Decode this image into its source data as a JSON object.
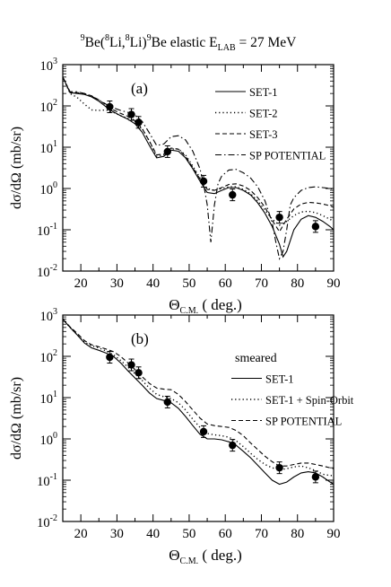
{
  "title": {
    "sup1": "9",
    "t1": "Be(",
    "sup2": "8",
    "t2": "Li,",
    "sup3": "8",
    "t3": "Li)",
    "sup4": "9",
    "t4": "Be elastic E",
    "sub": "LAB",
    "t5": " = 27 MeV"
  },
  "chart_data": [
    {
      "type": "line",
      "panel_label": "(a)",
      "xlabel": "Θ",
      "xlabel_sub": "C.M.",
      "xlabel_rest": " ( deg.)",
      "ylabel": "dσ/dΩ (mb/sr)",
      "xlim": [
        15,
        90
      ],
      "ylim": [
        0.01,
        1000
      ],
      "yscale": "log",
      "xticks": [
        20,
        30,
        40,
        50,
        60,
        70,
        80,
        90
      ],
      "yticks": [
        {
          "value": 1000,
          "base": "10",
          "exp": "3"
        },
        {
          "value": 100,
          "base": "10",
          "exp": "2"
        },
        {
          "value": 10,
          "base": "10",
          "exp": "1"
        },
        {
          "value": 1,
          "base": "10",
          "exp": "0"
        },
        {
          "value": 0.1,
          "base": "10",
          "exp": "-1"
        },
        {
          "value": 0.01,
          "base": "10",
          "exp": "-2"
        }
      ],
      "legend_position": "top-right",
      "experimental": {
        "x": [
          28,
          34,
          36,
          44,
          54,
          62,
          75,
          85
        ],
        "y": [
          95,
          62,
          40,
          7.8,
          1.5,
          0.7,
          0.2,
          0.12
        ]
      },
      "series": [
        {
          "name": "SET-1",
          "style": "solid",
          "x": [
            15,
            17,
            19,
            21,
            23,
            25,
            27,
            29,
            31,
            33,
            35,
            37,
            39,
            41,
            43,
            45,
            47,
            49,
            51,
            53,
            55,
            57,
            59,
            61,
            63,
            65,
            67,
            69,
            71,
            73,
            75,
            76,
            77,
            79,
            81,
            83,
            85,
            87,
            89,
            90
          ],
          "y": [
            500,
            210,
            200,
            190,
            165,
            130,
            95,
            72,
            58,
            48,
            37,
            23,
            11,
            5.5,
            6,
            8.5,
            8,
            5.5,
            3,
            1.5,
            0.8,
            0.75,
            0.9,
            1.05,
            1.05,
            0.9,
            0.7,
            0.45,
            0.25,
            0.12,
            0.045,
            0.022,
            0.03,
            0.1,
            0.18,
            0.22,
            0.2,
            0.16,
            0.12,
            0.1
          ]
        },
        {
          "name": "SET-2",
          "style": "dotted",
          "x": [
            15,
            17,
            19,
            21,
            23,
            25,
            27,
            29,
            31,
            33,
            35,
            37,
            39,
            41,
            43,
            45,
            47,
            49,
            51,
            53,
            55,
            57,
            59,
            61,
            63,
            65,
            67,
            69,
            71,
            73,
            75,
            77,
            79,
            81,
            83,
            85,
            87,
            89,
            90
          ],
          "y": [
            500,
            200,
            160,
            110,
            80,
            78,
            80,
            70,
            58,
            50,
            42,
            28,
            14,
            6,
            6.5,
            9,
            9,
            6.5,
            3.5,
            1.8,
            1.0,
            0.9,
            1.0,
            1.1,
            1.1,
            0.95,
            0.75,
            0.5,
            0.3,
            0.18,
            0.13,
            0.16,
            0.22,
            0.27,
            0.28,
            0.26,
            0.22,
            0.18,
            0.16
          ]
        },
        {
          "name": "SET-3",
          "style": "dashed",
          "x": [
            15,
            17,
            19,
            21,
            23,
            25,
            27,
            29,
            31,
            33,
            35,
            37,
            39,
            41,
            43,
            45,
            47,
            49,
            51,
            53,
            55,
            57,
            59,
            61,
            63,
            65,
            67,
            69,
            71,
            73,
            75,
            77,
            79,
            81,
            83,
            85,
            87,
            89,
            90
          ],
          "y": [
            500,
            215,
            210,
            200,
            175,
            140,
            105,
            80,
            66,
            56,
            44,
            28,
            14,
            6.5,
            6.8,
            9.5,
            9,
            6,
            3.2,
            1.7,
            0.95,
            0.9,
            1.05,
            1.25,
            1.3,
            1.15,
            0.9,
            0.6,
            0.35,
            0.17,
            0.09,
            0.18,
            0.32,
            0.42,
            0.46,
            0.45,
            0.42,
            0.38,
            0.35
          ]
        },
        {
          "name": "SP POTENTIAL",
          "style": "dashdot",
          "x": [
            15,
            17,
            19,
            21,
            23,
            25,
            27,
            29,
            31,
            33,
            35,
            37,
            39,
            41,
            43,
            45,
            47,
            49,
            51,
            53,
            54,
            55,
            56,
            57,
            58,
            59,
            61,
            63,
            65,
            67,
            69,
            71,
            73,
            74,
            75,
            76,
            77,
            78,
            79,
            81,
            83,
            85,
            87,
            89,
            90
          ],
          "y": [
            500,
            220,
            220,
            200,
            170,
            140,
            110,
            90,
            78,
            70,
            60,
            42,
            22,
            11,
            12,
            18,
            19,
            15,
            8,
            3,
            1.3,
            0.4,
            0.05,
            0.4,
            1.3,
            2,
            2.8,
            2.9,
            2.4,
            1.8,
            1.1,
            0.5,
            0.15,
            0.05,
            0.02,
            0.03,
            0.1,
            0.4,
            0.6,
            0.9,
            1.05,
            1.1,
            1.05,
            1.0,
            0.95
          ]
        }
      ]
    },
    {
      "type": "line",
      "panel_label": "(b)",
      "legend_header": "smeared",
      "xlabel": "Θ",
      "xlabel_sub": "C.M.",
      "xlabel_rest": " ( deg.)",
      "ylabel": "dσ/dΩ (mb/sr)",
      "xlim": [
        15,
        90
      ],
      "ylim": [
        0.01,
        1000
      ],
      "yscale": "log",
      "xticks": [
        20,
        30,
        40,
        50,
        60,
        70,
        80,
        90
      ],
      "yticks": [
        {
          "value": 1000,
          "base": "10",
          "exp": "3"
        },
        {
          "value": 100,
          "base": "10",
          "exp": "2"
        },
        {
          "value": 10,
          "base": "10",
          "exp": "1"
        },
        {
          "value": 1,
          "base": "10",
          "exp": "0"
        },
        {
          "value": 0.1,
          "base": "10",
          "exp": "-1"
        },
        {
          "value": 0.01,
          "base": "10",
          "exp": "-2"
        }
      ],
      "legend_position": "top-right",
      "experimental": {
        "x": [
          28,
          34,
          36,
          44,
          54,
          62,
          75,
          85
        ],
        "y": [
          95,
          62,
          40,
          7.8,
          1.5,
          0.7,
          0.2,
          0.12
        ]
      },
      "series": [
        {
          "name": "SET-1",
          "style": "solid",
          "x": [
            15,
            17,
            19,
            21,
            23,
            25,
            27,
            29,
            31,
            33,
            35,
            37,
            39,
            41,
            43,
            45,
            47,
            49,
            51,
            53,
            55,
            57,
            59,
            61,
            63,
            65,
            67,
            69,
            71,
            73,
            75,
            77,
            79,
            81,
            83,
            85,
            87,
            89,
            90
          ],
          "y": [
            800,
            500,
            330,
            210,
            160,
            140,
            120,
            100,
            70,
            45,
            30,
            20,
            13,
            9.5,
            8.5,
            7.5,
            5.5,
            3.5,
            2.1,
            1.3,
            1.0,
            1.0,
            0.95,
            0.85,
            0.7,
            0.5,
            0.35,
            0.23,
            0.15,
            0.1,
            0.08,
            0.09,
            0.12,
            0.15,
            0.16,
            0.15,
            0.12,
            0.09,
            0.08
          ]
        },
        {
          "name": "SET-1 + Spin-Orbit",
          "style": "dotted",
          "x": [
            15,
            17,
            19,
            21,
            23,
            25,
            27,
            29,
            31,
            33,
            35,
            37,
            39,
            41,
            43,
            45,
            47,
            49,
            51,
            53,
            55,
            57,
            59,
            61,
            63,
            65,
            67,
            69,
            71,
            73,
            75,
            77,
            79,
            81,
            83,
            85,
            87,
            89,
            90
          ],
          "y": [
            800,
            500,
            330,
            220,
            180,
            160,
            135,
            110,
            80,
            55,
            38,
            26,
            17,
            12,
            10.5,
            9.5,
            7.5,
            5,
            3,
            1.9,
            1.35,
            1.25,
            1.2,
            1.1,
            0.9,
            0.65,
            0.45,
            0.32,
            0.24,
            0.2,
            0.18,
            0.19,
            0.21,
            0.22,
            0.2,
            0.17,
            0.14,
            0.13,
            0.13
          ]
        },
        {
          "name": "SP POTENTIAL",
          "style": "dashed",
          "x": [
            15,
            17,
            19,
            21,
            23,
            25,
            27,
            29,
            31,
            33,
            35,
            37,
            39,
            41,
            43,
            45,
            47,
            49,
            51,
            53,
            55,
            57,
            59,
            61,
            63,
            65,
            67,
            69,
            71,
            73,
            75,
            77,
            79,
            81,
            83,
            85,
            87,
            89,
            90
          ],
          "y": [
            800,
            520,
            360,
            240,
            190,
            170,
            150,
            130,
            100,
            70,
            48,
            32,
            22,
            17,
            16,
            15.5,
            12,
            8,
            5,
            3.2,
            2.3,
            2.1,
            2.0,
            1.9,
            1.6,
            1.2,
            0.8,
            0.55,
            0.38,
            0.28,
            0.22,
            0.22,
            0.24,
            0.26,
            0.26,
            0.24,
            0.22,
            0.2,
            0.19
          ]
        }
      ]
    }
  ]
}
